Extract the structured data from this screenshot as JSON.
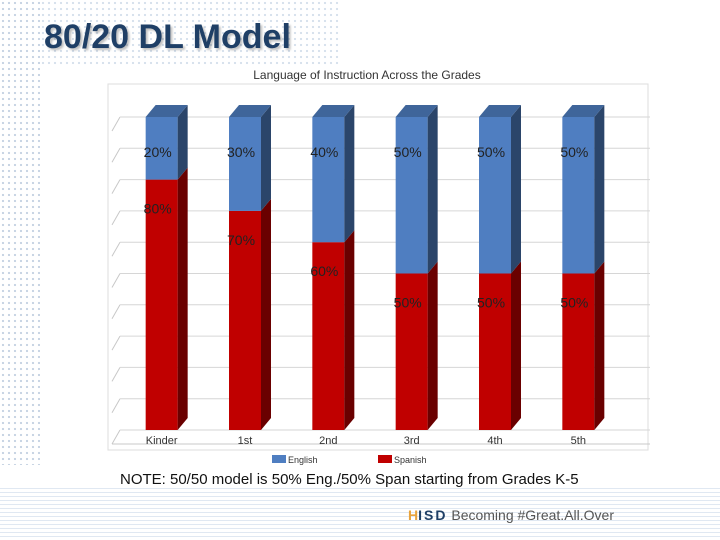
{
  "slide": {
    "title": "80/20 DL Model",
    "note": "NOTE: 50/50 model is 50% Eng./50% Span starting from Grades K-5",
    "footer_org": "ISD",
    "footer_org_first": "H",
    "footer_tagline": "Becoming #Great.All.Over"
  },
  "chart_data": {
    "type": "bar",
    "stacked": true,
    "title": "Language of Instruction Across the Grades",
    "xlabel": "",
    "ylabel": "",
    "categories": [
      "Kinder",
      "1st",
      "2nd",
      "3rd",
      "4th",
      "5th"
    ],
    "ylim": [
      0,
      100
    ],
    "grid": true,
    "legend_position": "bottom",
    "series": [
      {
        "name": "Spanish",
        "color": "#c00000",
        "values": [
          80,
          70,
          60,
          50,
          50,
          50
        ],
        "labels": [
          "80%",
          "70%",
          "60%",
          "50%",
          "50%",
          "50%"
        ]
      },
      {
        "name": "English",
        "color": "#4f7ec1",
        "values": [
          20,
          30,
          40,
          50,
          50,
          50
        ],
        "labels": [
          "20%",
          "30%",
          "40%",
          "50%",
          "50%",
          "50%"
        ]
      }
    ],
    "legend": [
      {
        "name": "English",
        "color": "#4f7ec1"
      },
      {
        "name": "Spanish",
        "color": "#c00000"
      }
    ]
  }
}
